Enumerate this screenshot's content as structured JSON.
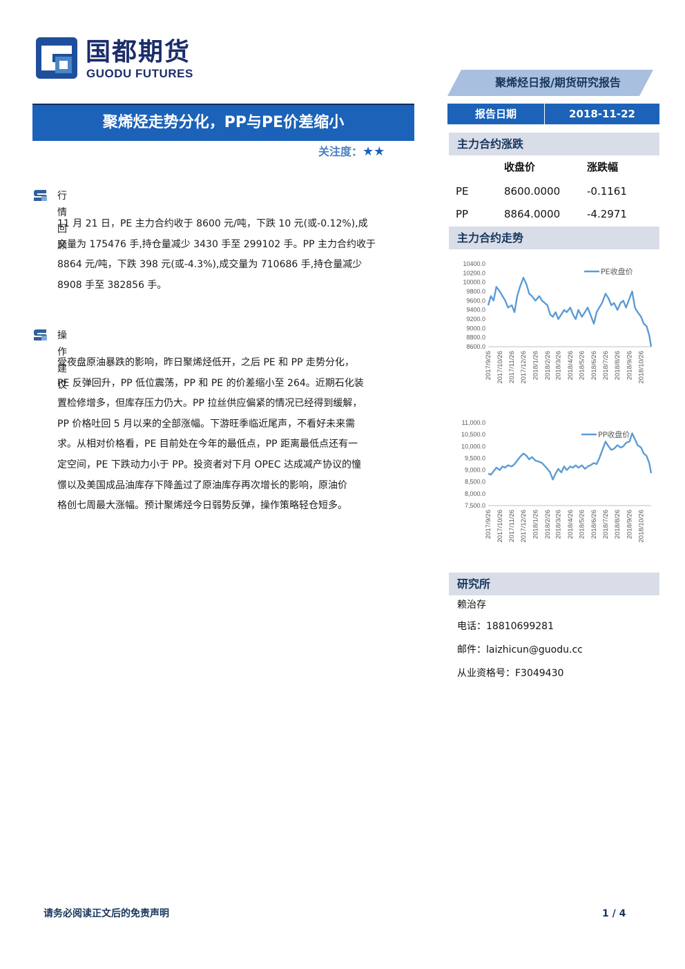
{
  "logo": {
    "cn": "国都期货",
    "en": "GUODU FUTURES"
  },
  "report_type": "聚烯烃日报/期货研究报告",
  "title": "聚烯烃走势分化，PP与PE价差缩小",
  "focus": {
    "label": "关注度：",
    "stars": "★★",
    "level": 2
  },
  "sections": {
    "market_review": {
      "heading": "行情回顾",
      "lines": [
        "11 月 21 日，PE 主力合约收于 8600 元/吨，下跌 10 元(或-0.12%),成",
        "交量为 175476 手,持仓量减少 3430 手至 299102 手。PP 主力合约收于",
        "8864 元/吨，下跌 398 元(或-4.3%),成交量为 710686 手,持仓量减少",
        "8908 手至 382856 手。"
      ]
    },
    "advice": {
      "heading": "操作建议",
      "lines": [
        "受夜盘原油暴跌的影响，昨日聚烯烃低开，之后 PE 和 PP 走势分化，",
        "PE 反弹回升，PP 低位震荡，PP 和 PE 的价差缩小至 264。近期石化装",
        "置检修增多，但库存压力仍大。PP 拉丝供应偏紧的情况已经得到缓解，",
        "PP 价格吐回 5 月以来的全部涨幅。下游旺季临近尾声，不看好未来需",
        "求。从相对价格看，PE 目前处在今年的最低点，PP 距离最低点还有一",
        "定空间，PE 下跌动力小于 PP。投资者对下月 OPEC 达成减产协议的憧",
        "憬以及美国成品油库存下降盖过了原油库存再次增长的影响，原油价",
        "格创七周最大涨幅。预计聚烯烃今日弱势反弹，操作策略轻仓短多。"
      ]
    }
  },
  "sidebar": {
    "date_label": "报告日期",
    "date_value": "2018-11-22",
    "contract_change_heading": "主力合约涨跌",
    "table": {
      "headers": [
        "",
        "收盘价",
        "涨跌幅"
      ],
      "rows": [
        [
          "PE",
          "8600.0000",
          "-0.1161"
        ],
        [
          "PP",
          "8864.0000",
          "-4.2971"
        ]
      ]
    },
    "trend_heading": "主力合约走势",
    "institute_heading": "研究所",
    "analyst_name": "赖治存",
    "phone": "电话：18810699281",
    "email": "邮件：laizhicun@guodu.cc",
    "license": "从业资格号：F3049430"
  },
  "footer": {
    "disclaimer": "请务必阅读正文后的免责声明",
    "page": "1 / 4"
  },
  "colors": {
    "brand": "#1b62b8",
    "navy": "#17365d",
    "line": "#5b9bd5",
    "side_head": "#d9dde8"
  },
  "chart_data": [
    {
      "type": "line",
      "title": "",
      "series": [
        {
          "name": "PE收盘价"
        }
      ],
      "x_ticks": [
        "2017/9/26",
        "2017/10/26",
        "2017/11/26",
        "2017/12/26",
        "2018/1/26",
        "2018/2/26",
        "2018/3/26",
        "2018/4/26",
        "2018/5/26",
        "2018/6/26",
        "2018/7/26",
        "2018/8/26",
        "2018/9/26",
        "2018/10/26"
      ],
      "y_ticks": [
        "10400.0",
        "10200.0",
        "10000.0",
        "9800.0",
        "9600.0",
        "9400.0",
        "9200.0",
        "9000.0",
        "8800.0",
        "8600.0"
      ],
      "ylim": [
        8600,
        10400
      ],
      "x": [
        "2017-09-26",
        "2017-10-03",
        "2017-10-10",
        "2017-10-17",
        "2017-10-26",
        "2017-11-02",
        "2017-11-09",
        "2017-11-16",
        "2017-11-26",
        "2017-12-03",
        "2017-12-10",
        "2017-12-17",
        "2017-12-26",
        "2018-01-03",
        "2018-01-10",
        "2018-01-17",
        "2018-01-26",
        "2018-02-05",
        "2018-02-12",
        "2018-02-26",
        "2018-03-05",
        "2018-03-12",
        "2018-03-19",
        "2018-03-26",
        "2018-04-03",
        "2018-04-10",
        "2018-04-17",
        "2018-04-26",
        "2018-05-03",
        "2018-05-10",
        "2018-05-17",
        "2018-05-26",
        "2018-06-03",
        "2018-06-10",
        "2018-06-17",
        "2018-06-26",
        "2018-07-03",
        "2018-07-10",
        "2018-07-17",
        "2018-07-26",
        "2018-08-03",
        "2018-08-10",
        "2018-08-17",
        "2018-08-26",
        "2018-09-03",
        "2018-09-10",
        "2018-09-17",
        "2018-09-26",
        "2018-10-03",
        "2018-10-10",
        "2018-10-17",
        "2018-10-26",
        "2018-11-02",
        "2018-11-09",
        "2018-11-16",
        "2018-11-21"
      ],
      "values": [
        9500,
        9700,
        9600,
        9900,
        9800,
        9700,
        9600,
        9450,
        9500,
        9350,
        9700,
        9900,
        10100,
        9950,
        9750,
        9700,
        9600,
        9700,
        9600,
        9500,
        9300,
        9250,
        9350,
        9200,
        9300,
        9400,
        9350,
        9450,
        9300,
        9200,
        9400,
        9250,
        9350,
        9450,
        9300,
        9100,
        9350,
        9450,
        9550,
        9750,
        9650,
        9500,
        9550,
        9400,
        9550,
        9600,
        9450,
        9650,
        9800,
        9450,
        9350,
        9250,
        9100,
        9050,
        8850,
        8600
      ]
    },
    {
      "type": "line",
      "title": "",
      "series": [
        {
          "name": "PP收盘价"
        }
      ],
      "x_ticks": [
        "2017/9/26",
        "2017/10/26",
        "2017/11/26",
        "2017/12/26",
        "2018/1/26",
        "2018/2/26",
        "2018/3/26",
        "2018/4/26",
        "2018/5/26",
        "2018/6/26",
        "2018/7/26",
        "2018/8/26",
        "2018/9/26",
        "2018/10/26"
      ],
      "y_ticks": [
        "11,000.0",
        "10,500.0",
        "10,000.0",
        "9,500.0",
        "9,000.0",
        "8,500.0",
        "8,000.0",
        "7,500.0"
      ],
      "ylim": [
        7500,
        11000
      ],
      "x": [
        "2017-09-26",
        "2017-10-03",
        "2017-10-10",
        "2017-10-17",
        "2017-10-26",
        "2017-11-02",
        "2017-11-09",
        "2017-11-16",
        "2017-11-26",
        "2017-12-03",
        "2017-12-10",
        "2017-12-17",
        "2017-12-26",
        "2018-01-03",
        "2018-01-10",
        "2018-01-17",
        "2018-01-26",
        "2018-02-05",
        "2018-02-12",
        "2018-02-26",
        "2018-03-05",
        "2018-03-12",
        "2018-03-19",
        "2018-03-26",
        "2018-04-03",
        "2018-04-10",
        "2018-04-17",
        "2018-04-26",
        "2018-05-03",
        "2018-05-10",
        "2018-05-17",
        "2018-05-26",
        "2018-06-03",
        "2018-06-10",
        "2018-06-17",
        "2018-06-26",
        "2018-07-03",
        "2018-07-10",
        "2018-07-17",
        "2018-07-26",
        "2018-08-03",
        "2018-08-10",
        "2018-08-17",
        "2018-08-26",
        "2018-09-03",
        "2018-09-10",
        "2018-09-17",
        "2018-09-26",
        "2018-10-03",
        "2018-10-10",
        "2018-10-17",
        "2018-10-26",
        "2018-11-02",
        "2018-11-09",
        "2018-11-16",
        "2018-11-21"
      ],
      "values": [
        8850,
        8800,
        8950,
        9100,
        9000,
        9150,
        9100,
        9200,
        9150,
        9250,
        9400,
        9550,
        9700,
        9600,
        9450,
        9550,
        9400,
        9350,
        9300,
        9050,
        8900,
        8600,
        8850,
        9050,
        8900,
        9150,
        9000,
        9150,
        9100,
        9200,
        9100,
        9200,
        9050,
        9150,
        9200,
        9300,
        9250,
        9500,
        9800,
        10200,
        10000,
        9850,
        9900,
        10050,
        9950,
        10000,
        10150,
        10200,
        10550,
        10300,
        10050,
        9950,
        9700,
        9600,
        9300,
        8864
      ]
    }
  ]
}
